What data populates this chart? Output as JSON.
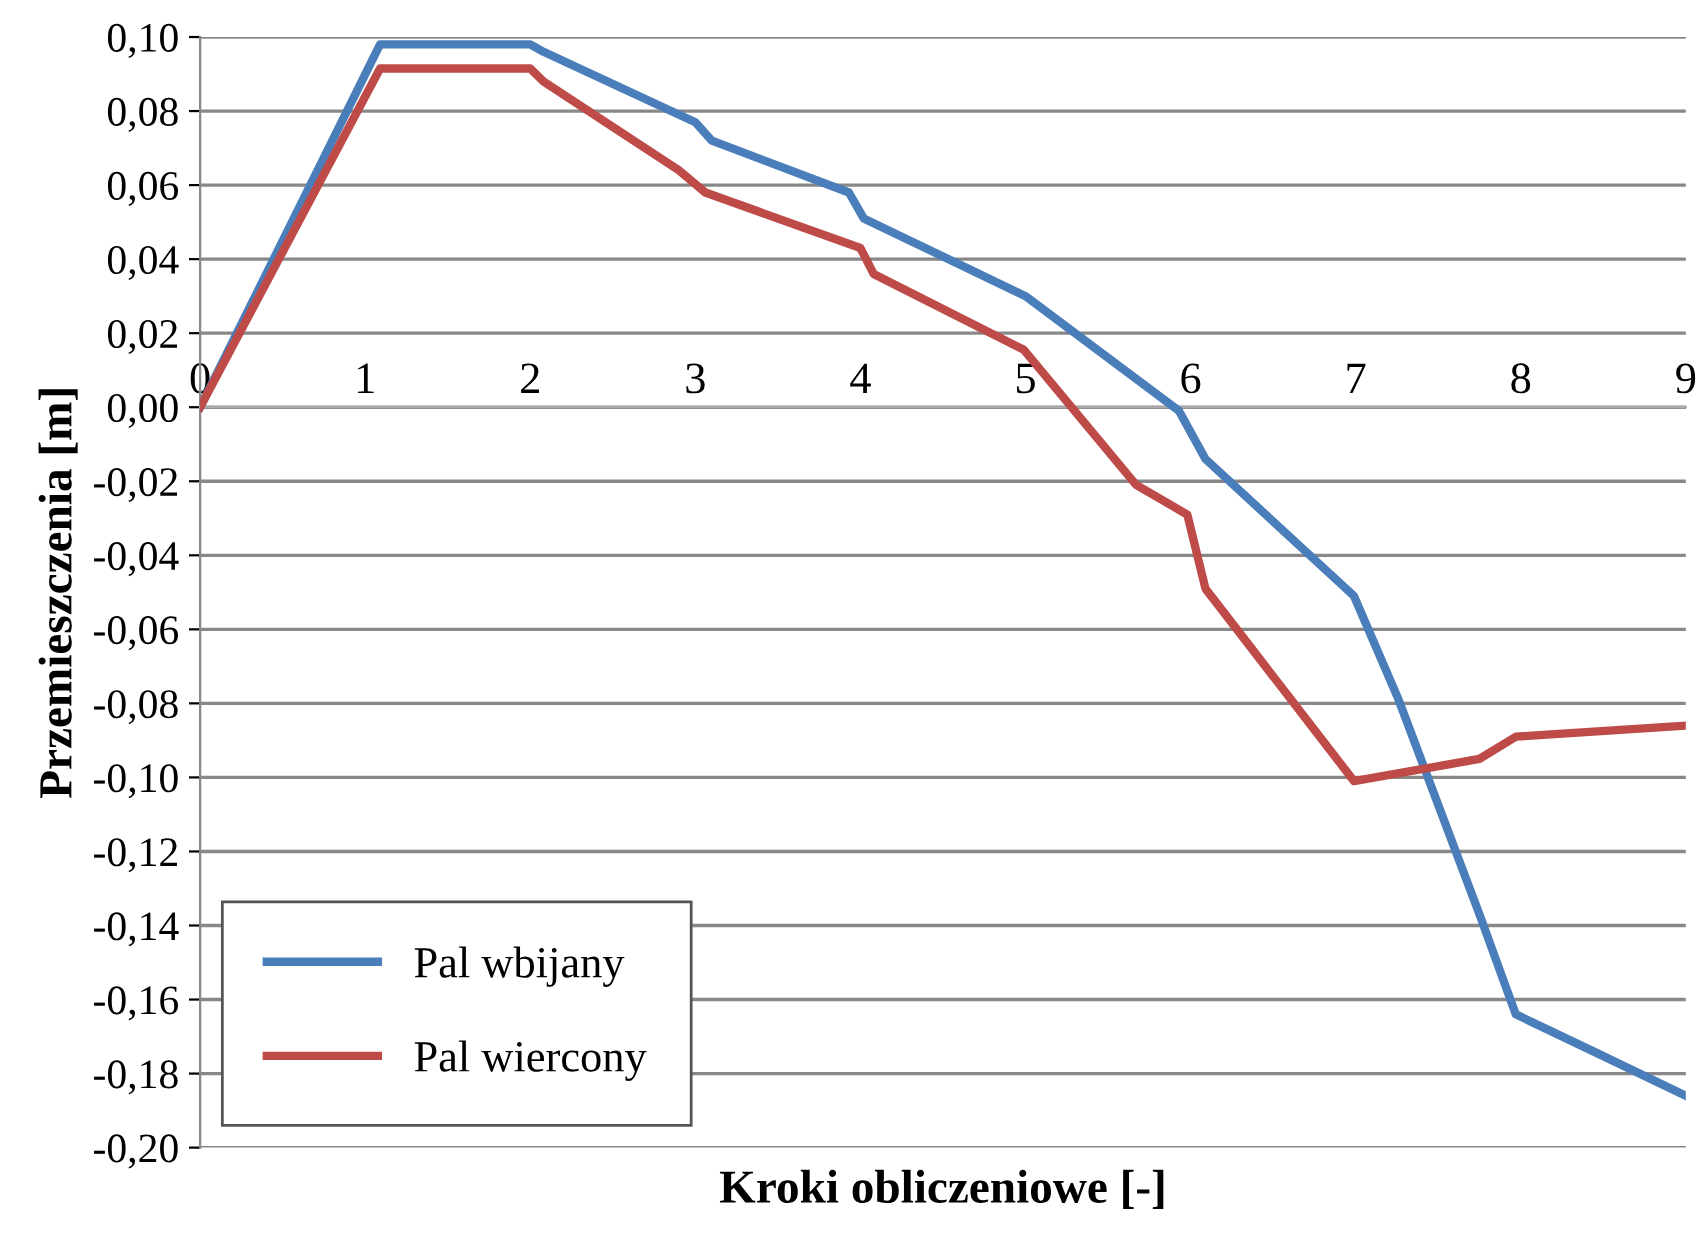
{
  "chart_data": {
    "type": "line",
    "xlabel": "Kroki obliczeniowe [-]",
    "ylabel": "Przemieszczenia [m]",
    "xlim": [
      0,
      9
    ],
    "xticks": [
      0,
      1,
      2,
      3,
      4,
      5,
      6,
      7,
      8,
      9
    ],
    "ylim": [
      -0.2,
      0.1
    ],
    "yticks": [
      {
        "value": -0.2,
        "label": "-0,20"
      },
      {
        "value": -0.18,
        "label": "-0,18"
      },
      {
        "value": -0.16,
        "label": "-0,16"
      },
      {
        "value": -0.14,
        "label": "-0,14"
      },
      {
        "value": -0.12,
        "label": "-0,12"
      },
      {
        "value": -0.1,
        "label": "-0,10"
      },
      {
        "value": -0.08,
        "label": "-0,08"
      },
      {
        "value": -0.06,
        "label": "-0,06"
      },
      {
        "value": -0.04,
        "label": "-0,04"
      },
      {
        "value": -0.02,
        "label": "-0,02"
      },
      {
        "value": 0,
        "label": "0,00"
      },
      {
        "value": 0.02,
        "label": "0,02"
      },
      {
        "value": 0.04,
        "label": "0,04"
      },
      {
        "value": 0.06,
        "label": "0,06"
      },
      {
        "value": 0.08,
        "label": "0,08"
      },
      {
        "value": 0.1,
        "label": "0,10"
      }
    ],
    "grid": "y",
    "legend": "bottom left",
    "marker": "none",
    "line_style": "solid",
    "series": [
      {
        "name": "Pal wbijany",
        "color": "#4a7ebb",
        "x": [
          0,
          1.09,
          2.0,
          2.08,
          3.0,
          3.1,
          3.93,
          4.02,
          5.0,
          5.93,
          6.09,
          6.99,
          7.26,
          7.75,
          7.97,
          8.44,
          9
        ],
        "values": [
          0,
          0.098,
          0.098,
          0.096,
          0.077,
          0.072,
          0.058,
          0.051,
          0.03,
          -0.001,
          -0.014,
          -0.051,
          -0.079,
          -0.137,
          -0.164,
          -0.174,
          -0.186
        ]
      },
      {
        "name": "Pal wiercony",
        "color": "#be4b48",
        "x": [
          0,
          1.09,
          2.0,
          2.08,
          2.9,
          3.06,
          4.0,
          4.08,
          4.99,
          5.67,
          5.98,
          6.09,
          6.99,
          7.75,
          7.97,
          9
        ],
        "values": [
          0,
          0.0915,
          0.0915,
          0.088,
          0.064,
          0.058,
          0.043,
          0.036,
          0.0155,
          -0.021,
          -0.029,
          -0.049,
          -0.101,
          -0.095,
          -0.089,
          -0.086
        ]
      }
    ]
  }
}
